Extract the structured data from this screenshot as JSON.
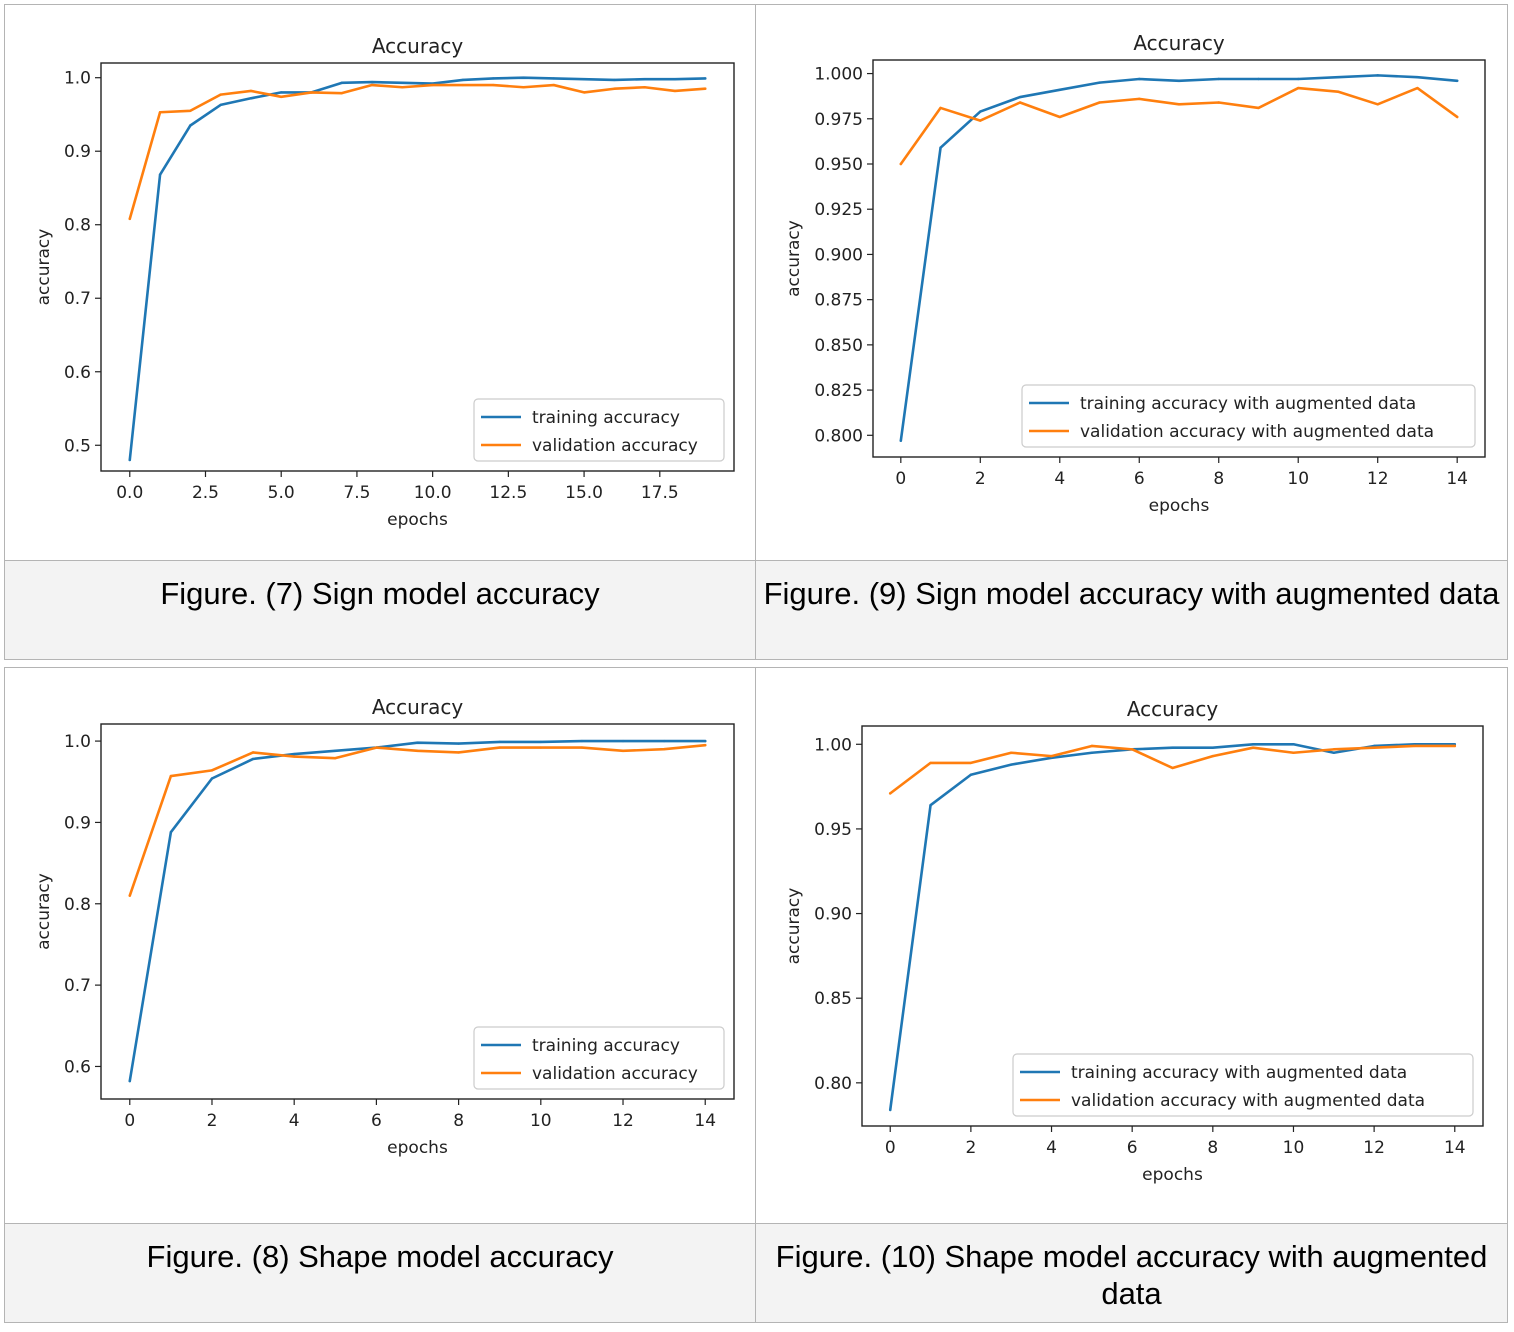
{
  "colors": {
    "training": "#1f77b4",
    "validation": "#ff7f0e"
  },
  "captions": [
    "Figure. (7) Sign model accuracy",
    "Figure. (9) Sign model accuracy with augmented data",
    "Figure. (8) Shape model accuracy",
    "Figure. (10) Shape model accuracy with augmented data"
  ],
  "chart_data": [
    {
      "type": "line",
      "title": "Accuracy",
      "xlabel": "epochs",
      "ylabel": "accuracy",
      "xlim": [
        -0.95,
        19.95
      ],
      "ylim": [
        0.465,
        1.02
      ],
      "xticks": [
        0,
        2.5,
        5,
        7.5,
        10,
        12.5,
        15,
        17.5
      ],
      "xtick_labels": [
        "0.0",
        "2.5",
        "5.0",
        "7.5",
        "10.0",
        "12.5",
        "15.0",
        "17.5"
      ],
      "yticks": [
        0.5,
        0.6,
        0.7,
        0.8,
        0.9,
        1.0
      ],
      "ytick_labels": [
        "0.5",
        "0.6",
        "0.7",
        "0.8",
        "0.9",
        "1.0"
      ],
      "legend": "lower-right",
      "grid": false,
      "x": [
        0,
        1,
        2,
        3,
        4,
        5,
        6,
        7,
        8,
        9,
        10,
        11,
        12,
        13,
        14,
        15,
        16,
        17,
        18,
        19
      ],
      "series": [
        {
          "name": "training accuracy",
          "values": [
            0.48,
            0.868,
            0.935,
            0.963,
            0.972,
            0.98,
            0.98,
            0.993,
            0.994,
            0.993,
            0.992,
            0.997,
            0.999,
            1.0,
            0.999,
            0.998,
            0.997,
            0.998,
            0.998,
            0.999
          ]
        },
        {
          "name": "validation accuracy",
          "values": [
            0.808,
            0.953,
            0.955,
            0.977,
            0.982,
            0.974,
            0.98,
            0.979,
            0.99,
            0.987,
            0.99,
            0.99,
            0.99,
            0.987,
            0.99,
            0.98,
            0.985,
            0.987,
            0.982,
            0.985
          ]
        }
      ]
    },
    {
      "type": "line",
      "title": "Accuracy",
      "xlabel": "epochs",
      "ylabel": "accuracy",
      "xlim": [
        -0.7,
        14.7
      ],
      "ylim": [
        0.788,
        1.0075
      ],
      "xticks": [
        0,
        2,
        4,
        6,
        8,
        10,
        12,
        14
      ],
      "xtick_labels": [
        "0",
        "2",
        "4",
        "6",
        "8",
        "10",
        "12",
        "14"
      ],
      "yticks": [
        0.8,
        0.825,
        0.85,
        0.875,
        0.9,
        0.925,
        0.95,
        0.975,
        1.0
      ],
      "ytick_labels": [
        "0.800",
        "0.825",
        "0.850",
        "0.875",
        "0.900",
        "0.925",
        "0.950",
        "0.975",
        "1.000"
      ],
      "legend": "lower-right",
      "grid": false,
      "x": [
        0,
        1,
        2,
        3,
        4,
        5,
        6,
        7,
        8,
        9,
        10,
        11,
        12,
        13,
        14
      ],
      "series": [
        {
          "name": "training accuracy with augmented data",
          "values": [
            0.797,
            0.959,
            0.979,
            0.987,
            0.991,
            0.995,
            0.997,
            0.996,
            0.997,
            0.997,
            0.997,
            0.998,
            0.999,
            0.998,
            0.996
          ]
        },
        {
          "name": "validation accuracy with augmented data",
          "values": [
            0.95,
            0.981,
            0.974,
            0.984,
            0.976,
            0.984,
            0.986,
            0.983,
            0.984,
            0.981,
            0.992,
            0.99,
            0.983,
            0.992,
            0.976
          ]
        }
      ]
    },
    {
      "type": "line",
      "title": "Accuracy",
      "xlabel": "epochs",
      "ylabel": "accuracy",
      "xlim": [
        -0.7,
        14.7
      ],
      "ylim": [
        0.56,
        1.021
      ],
      "xticks": [
        0,
        2,
        4,
        6,
        8,
        10,
        12,
        14
      ],
      "xtick_labels": [
        "0",
        "2",
        "4",
        "6",
        "8",
        "10",
        "12",
        "14"
      ],
      "yticks": [
        0.6,
        0.7,
        0.8,
        0.9,
        1.0
      ],
      "ytick_labels": [
        "0.6",
        "0.7",
        "0.8",
        "0.9",
        "1.0"
      ],
      "legend": "lower-right",
      "grid": false,
      "x": [
        0,
        1,
        2,
        3,
        4,
        5,
        6,
        7,
        8,
        9,
        10,
        11,
        12,
        13,
        14
      ],
      "series": [
        {
          "name": "training accuracy",
          "values": [
            0.582,
            0.888,
            0.954,
            0.978,
            0.984,
            0.988,
            0.992,
            0.998,
            0.997,
            0.999,
            0.999,
            1.0,
            1.0,
            1.0,
            1.0
          ]
        },
        {
          "name": "validation accuracy",
          "values": [
            0.81,
            0.957,
            0.964,
            0.986,
            0.981,
            0.979,
            0.992,
            0.988,
            0.986,
            0.992,
            0.992,
            0.992,
            0.988,
            0.99,
            0.995
          ]
        }
      ]
    },
    {
      "type": "line",
      "title": "Accuracy",
      "xlabel": "epochs",
      "ylabel": "accuracy",
      "xlim": [
        -0.7,
        14.7
      ],
      "ylim": [
        0.7745,
        1.0108
      ],
      "xticks": [
        0,
        2,
        4,
        6,
        8,
        10,
        12,
        14
      ],
      "xtick_labels": [
        "0",
        "2",
        "4",
        "6",
        "8",
        "10",
        "12",
        "14"
      ],
      "yticks": [
        0.8,
        0.85,
        0.9,
        0.95,
        1.0
      ],
      "ytick_labels": [
        "0.80",
        "0.85",
        "0.90",
        "0.95",
        "1.00"
      ],
      "legend": "lower-right",
      "grid": false,
      "x": [
        0,
        1,
        2,
        3,
        4,
        5,
        6,
        7,
        8,
        9,
        10,
        11,
        12,
        13,
        14
      ],
      "series": [
        {
          "name": "training accuracy with augmented data",
          "values": [
            0.784,
            0.964,
            0.982,
            0.988,
            0.992,
            0.995,
            0.997,
            0.998,
            0.998,
            1.0,
            1.0,
            0.995,
            0.999,
            1.0,
            1.0
          ]
        },
        {
          "name": "validation accuracy with augmented data",
          "values": [
            0.971,
            0.989,
            0.989,
            0.995,
            0.993,
            0.999,
            0.997,
            0.986,
            0.993,
            0.998,
            0.995,
            0.997,
            0.998,
            0.999,
            0.999
          ]
        }
      ]
    }
  ]
}
